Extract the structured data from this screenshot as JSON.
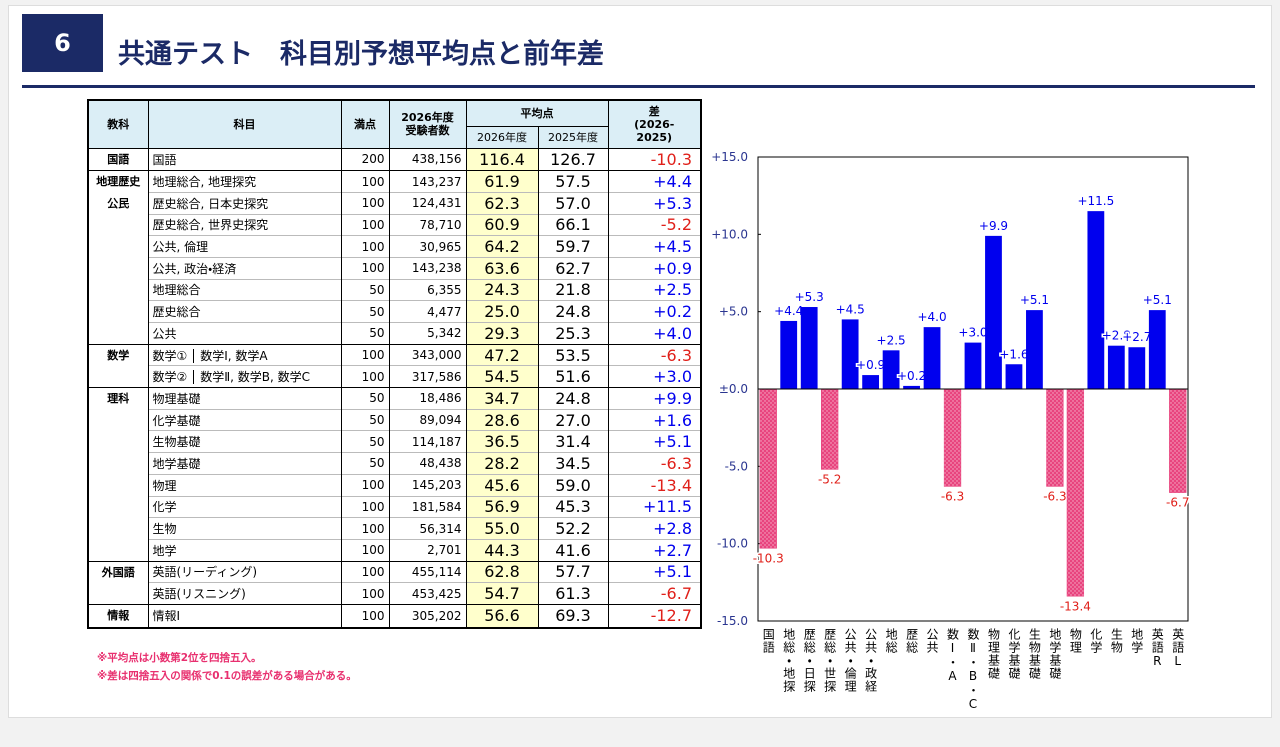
{
  "header": {
    "number": "6",
    "title": "共通テスト　科目別予想平均点と前年差"
  },
  "table": {
    "columns": {
      "group": "教科",
      "subject": "科目",
      "full": "満点",
      "examinees": [
        "2026年度",
        "受験者数"
      ],
      "average": "平均点",
      "avg_2026": "2026年度",
      "avg_2025": "2025年度",
      "diff": [
        "差",
        "(2026-",
        "2025)"
      ]
    },
    "groups": [
      {
        "names": [
          "国語"
        ],
        "rows": [
          {
            "subject": "国語",
            "full": "200",
            "examinees": "438,156",
            "avg_2026": "116.4",
            "avg_2025": "126.7",
            "diff": "-10.3"
          }
        ]
      },
      {
        "names": [
          "地理歴史",
          "公民"
        ],
        "rows": [
          {
            "subject": "地理総合, 地理探究",
            "full": "100",
            "examinees": "143,237",
            "avg_2026": "61.9",
            "avg_2025": "57.5",
            "diff": "+4.4"
          },
          {
            "subject": "歴史総合, 日本史探究",
            "full": "100",
            "examinees": "124,431",
            "avg_2026": "62.3",
            "avg_2025": "57.0",
            "diff": "+5.3"
          },
          {
            "subject": "歴史総合, 世界史探究",
            "full": "100",
            "examinees": "78,710",
            "avg_2026": "60.9",
            "avg_2025": "66.1",
            "diff": "-5.2"
          },
          {
            "subject": "公共, 倫理",
            "full": "100",
            "examinees": "30,965",
            "avg_2026": "64.2",
            "avg_2025": "59.7",
            "diff": "+4.5"
          },
          {
            "subject": "公共, 政治・経済",
            "full": "100",
            "examinees": "143,238",
            "avg_2026": "63.6",
            "avg_2025": "62.7",
            "diff": "+0.9"
          },
          {
            "subject": "地理総合",
            "full": "50",
            "examinees": "6,355",
            "avg_2026": "24.3",
            "avg_2025": "21.8",
            "diff": "+2.5"
          },
          {
            "subject": "歴史総合",
            "full": "50",
            "examinees": "4,477",
            "avg_2026": "25.0",
            "avg_2025": "24.8",
            "diff": "+0.2"
          },
          {
            "subject": "公共",
            "full": "50",
            "examinees": "5,342",
            "avg_2026": "29.3",
            "avg_2025": "25.3",
            "diff": "+4.0"
          }
        ]
      },
      {
        "names": [
          "数学"
        ],
        "rows": [
          {
            "subject": "数学①",
            "subject_detail": "数学Ⅰ, 数学A",
            "full": "100",
            "examinees": "343,000",
            "avg_2026": "47.2",
            "avg_2025": "53.5",
            "diff": "-6.3"
          },
          {
            "subject": "数学②",
            "subject_detail": "数学Ⅱ, 数学B, 数学C",
            "full": "100",
            "examinees": "317,586",
            "avg_2026": "54.5",
            "avg_2025": "51.6",
            "diff": "+3.0"
          }
        ]
      },
      {
        "names": [
          "理科"
        ],
        "rows": [
          {
            "subject": "物理基礎",
            "full": "50",
            "examinees": "18,486",
            "avg_2026": "34.7",
            "avg_2025": "24.8",
            "diff": "+9.9"
          },
          {
            "subject": "化学基礎",
            "full": "50",
            "examinees": "89,094",
            "avg_2026": "28.6",
            "avg_2025": "27.0",
            "diff": "+1.6"
          },
          {
            "subject": "生物基礎",
            "full": "50",
            "examinees": "114,187",
            "avg_2026": "36.5",
            "avg_2025": "31.4",
            "diff": "+5.1"
          },
          {
            "subject": "地学基礎",
            "full": "50",
            "examinees": "48,438",
            "avg_2026": "28.2",
            "avg_2025": "34.5",
            "diff": "-6.3"
          },
          {
            "subject": "物理",
            "full": "100",
            "examinees": "145,203",
            "avg_2026": "45.6",
            "avg_2025": "59.0",
            "diff": "-13.4"
          },
          {
            "subject": "化学",
            "full": "100",
            "examinees": "181,584",
            "avg_2026": "56.9",
            "avg_2025": "45.3",
            "diff": "+11.5"
          },
          {
            "subject": "生物",
            "full": "100",
            "examinees": "56,314",
            "avg_2026": "55.0",
            "avg_2025": "52.2",
            "diff": "+2.8"
          },
          {
            "subject": "地学",
            "full": "100",
            "examinees": "2,701",
            "avg_2026": "44.3",
            "avg_2025": "41.6",
            "diff": "+2.7"
          }
        ]
      },
      {
        "names": [
          "外国語"
        ],
        "rows": [
          {
            "subject": "英語(リーディング)",
            "full": "100",
            "examinees": "455,114",
            "avg_2026": "62.8",
            "avg_2025": "57.7",
            "diff": "+5.1"
          },
          {
            "subject": "英語(リスニング)",
            "full": "100",
            "examinees": "453,425",
            "avg_2026": "54.7",
            "avg_2025": "61.3",
            "diff": "-6.7"
          }
        ]
      },
      {
        "names": [
          "情報"
        ],
        "rows": [
          {
            "subject": "情報Ⅰ",
            "full": "100",
            "examinees": "305,202",
            "avg_2026": "56.6",
            "avg_2025": "69.3",
            "diff": "-12.7"
          }
        ]
      }
    ]
  },
  "chart_data": {
    "type": "bar",
    "categories": [
      "国語",
      "地総・地探",
      "歴総・日探",
      "歴総・世探",
      "公共・倫理",
      "公共・政経",
      "地総",
      "歴総",
      "公共",
      "数Ⅰ・A",
      "数Ⅱ・B・C",
      "物理基礎",
      "化学基礎",
      "生物基礎",
      "地学基礎",
      "物理",
      "化学",
      "生物",
      "地学",
      "英語R",
      "英語L"
    ],
    "values": [
      -10.3,
      4.4,
      5.3,
      -5.2,
      4.5,
      0.9,
      2.5,
      0.2,
      4.0,
      -6.3,
      3.0,
      9.9,
      1.6,
      5.1,
      -6.3,
      -13.4,
      11.5,
      2.8,
      2.7,
      5.1,
      -6.7
    ],
    "value_labels": [
      "-10.3",
      "+4.4",
      "+5.3",
      "-5.2",
      "+4.5",
      "+0.9",
      "+2.5",
      "+0.2",
      "+4.0",
      "-6.3",
      "+3.0",
      "+9.9",
      "+1.6",
      "+5.1",
      "-6.3",
      "-13.4",
      "+11.5",
      "+2.8",
      "+2.7",
      "+5.1",
      "-6.7"
    ],
    "positive_color": "#0000ee",
    "negative_color": "#e8447e",
    "negative_label_color": "#e0201a",
    "ylim": [
      -15,
      15
    ],
    "yticks": [
      {
        "value": 15,
        "label": "+15.0"
      },
      {
        "value": 10,
        "label": "+10.0"
      },
      {
        "value": 5,
        "label": "+5.0"
      },
      {
        "value": 0,
        "label": "±0.0"
      },
      {
        "value": -5,
        "label": "-5.0"
      },
      {
        "value": -10,
        "label": "-10.0"
      },
      {
        "value": -15,
        "label": "-15.0"
      }
    ]
  },
  "notes": [
    "※平均点は小数第2位を四捨五入。",
    "※差は四捨五入の関係で0.1の誤差がある場合がある。"
  ]
}
